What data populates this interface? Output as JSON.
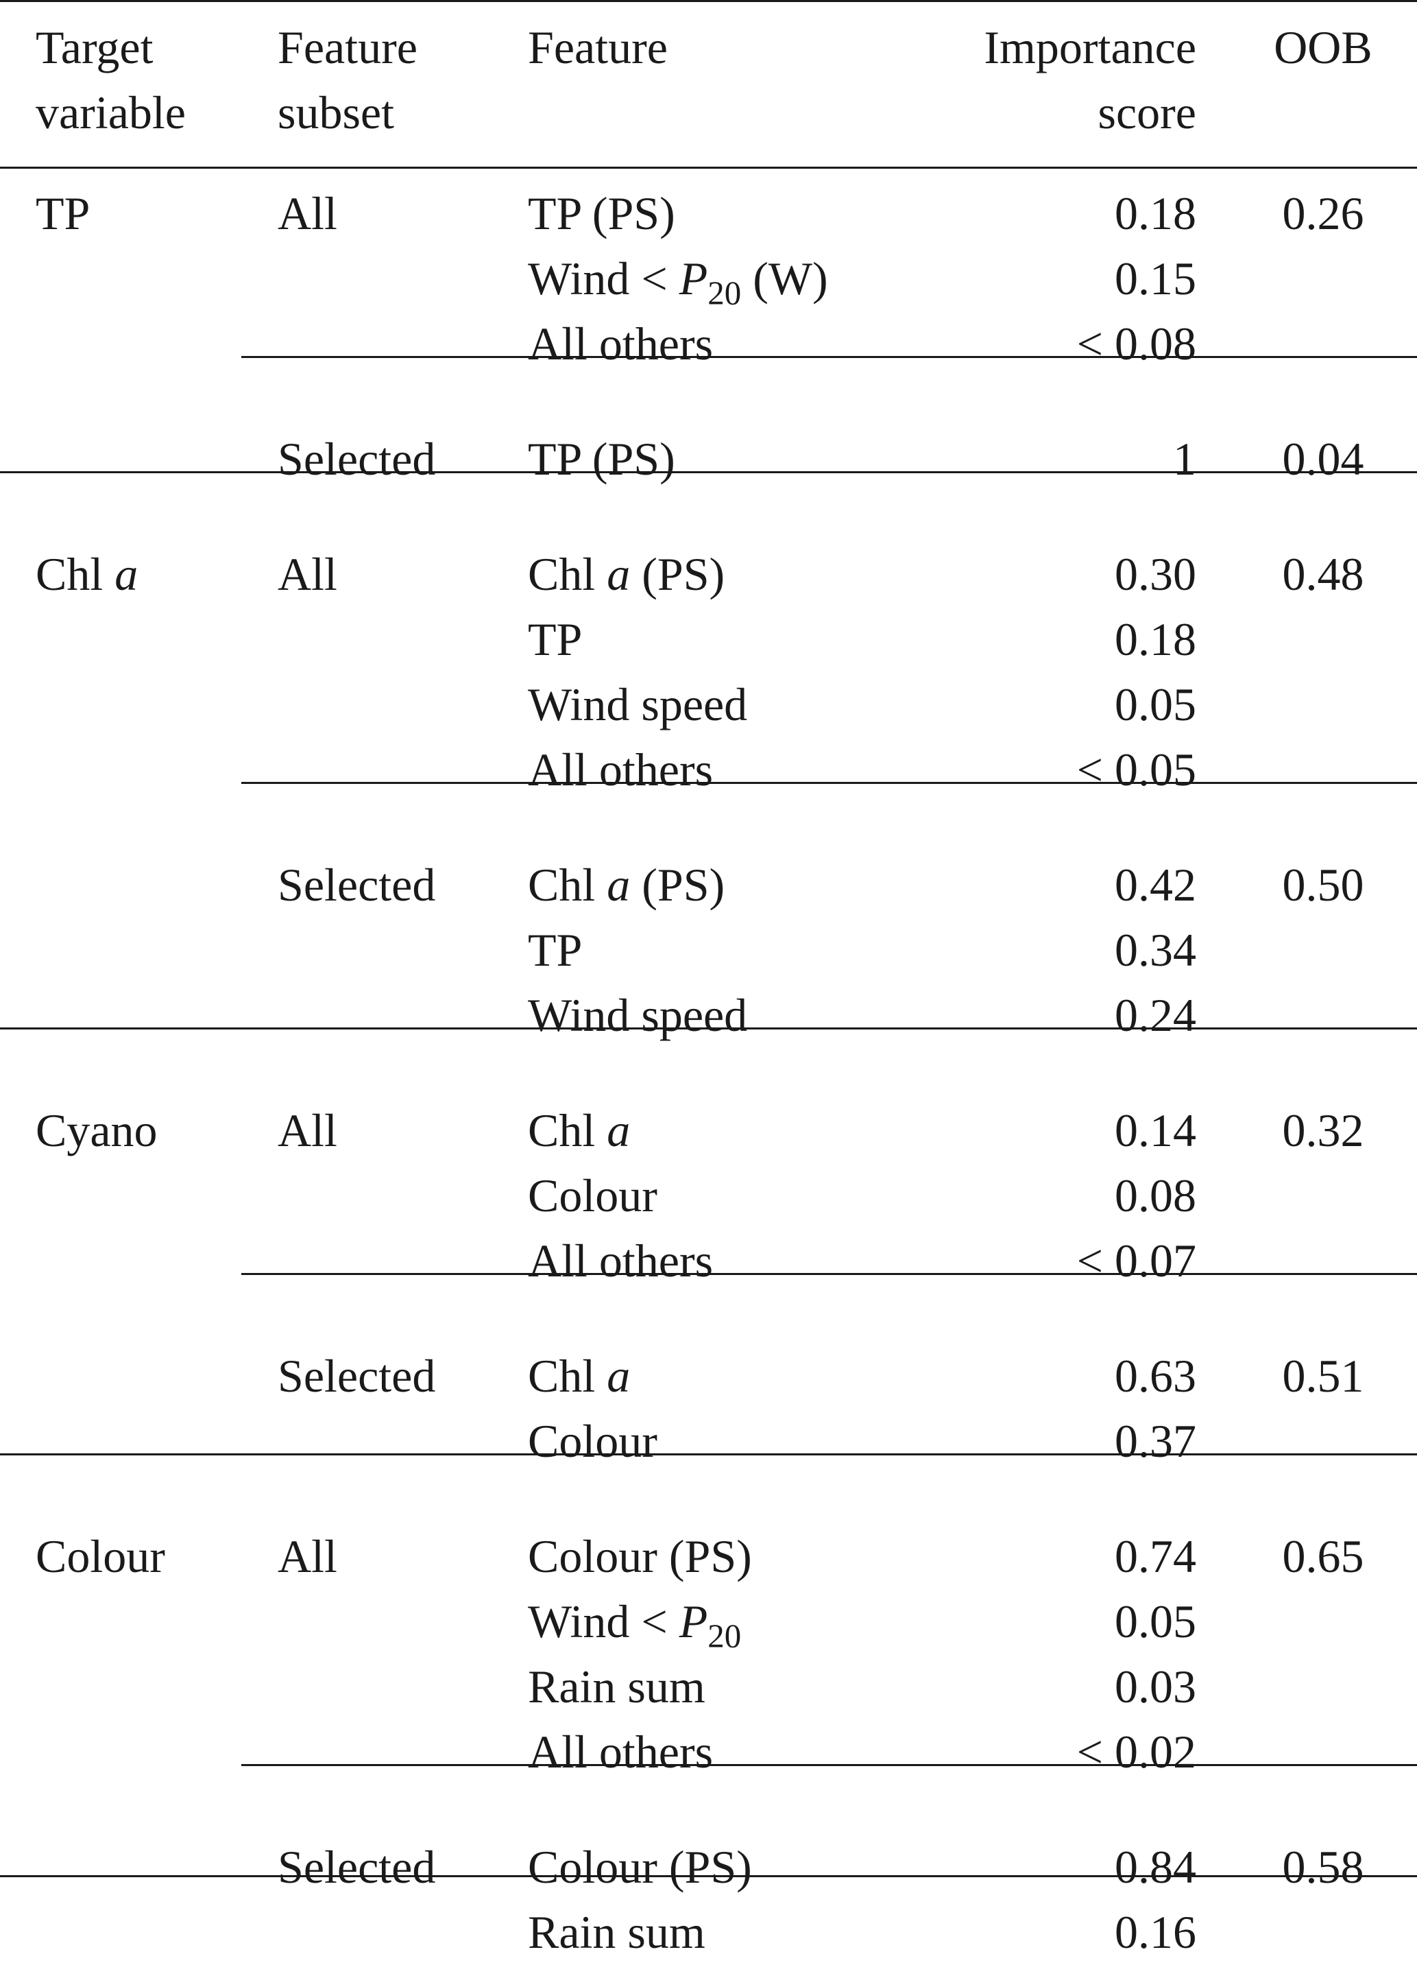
{
  "headers": {
    "target": [
      "Target",
      "variable"
    ],
    "subset": [
      "Feature",
      "subset"
    ],
    "feature": "Feature",
    "importance": [
      "Importance",
      "score"
    ],
    "oob": "OOB"
  },
  "groups": [
    {
      "target": [
        {
          "t": "TP"
        }
      ],
      "blocks": [
        {
          "subset": "All",
          "oob": "0.26",
          "rows": [
            {
              "feature": [
                {
                  "t": "TP (PS)"
                }
              ],
              "score": "0.18"
            },
            {
              "feature": [
                {
                  "t": "Wind < "
                },
                {
                  "t": "P",
                  "i": true
                },
                {
                  "t": "20",
                  "sub": true
                },
                {
                  "t": " (W)"
                }
              ],
              "score": "0.15"
            },
            {
              "feature": [
                {
                  "t": "All others"
                }
              ],
              "score": "< 0.08"
            }
          ]
        },
        {
          "subset": "Selected",
          "oob": "0.04",
          "rows": [
            {
              "feature": [
                {
                  "t": "TP (PS)"
                }
              ],
              "score": "1"
            }
          ]
        }
      ]
    },
    {
      "target": [
        {
          "t": "Chl "
        },
        {
          "t": "a",
          "i": true
        }
      ],
      "blocks": [
        {
          "subset": "All",
          "oob": "0.48",
          "rows": [
            {
              "feature": [
                {
                  "t": "Chl "
                },
                {
                  "t": "a",
                  "i": true
                },
                {
                  "t": " (PS)"
                }
              ],
              "score": "0.30"
            },
            {
              "feature": [
                {
                  "t": "TP"
                }
              ],
              "score": "0.18"
            },
            {
              "feature": [
                {
                  "t": "Wind speed"
                }
              ],
              "score": "0.05"
            },
            {
              "feature": [
                {
                  "t": "All others"
                }
              ],
              "score": "< 0.05"
            }
          ]
        },
        {
          "subset": "Selected",
          "oob": "0.50",
          "rows": [
            {
              "feature": [
                {
                  "t": "Chl "
                },
                {
                  "t": "a",
                  "i": true
                },
                {
                  "t": " (PS)"
                }
              ],
              "score": "0.42"
            },
            {
              "feature": [
                {
                  "t": "TP"
                }
              ],
              "score": "0.34"
            },
            {
              "feature": [
                {
                  "t": "Wind speed"
                }
              ],
              "score": "0.24"
            }
          ]
        }
      ]
    },
    {
      "target": [
        {
          "t": "Cyano"
        }
      ],
      "blocks": [
        {
          "subset": "All",
          "oob": "0.32",
          "rows": [
            {
              "feature": [
                {
                  "t": "Chl "
                },
                {
                  "t": "a",
                  "i": true
                }
              ],
              "score": "0.14"
            },
            {
              "feature": [
                {
                  "t": "Colour"
                }
              ],
              "score": "0.08"
            },
            {
              "feature": [
                {
                  "t": "All others"
                }
              ],
              "score": "< 0.07"
            }
          ]
        },
        {
          "subset": "Selected",
          "oob": "0.51",
          "rows": [
            {
              "feature": [
                {
                  "t": "Chl "
                },
                {
                  "t": "a",
                  "i": true
                }
              ],
              "score": "0.63"
            },
            {
              "feature": [
                {
                  "t": "Colour"
                }
              ],
              "score": "0.37"
            }
          ]
        }
      ]
    },
    {
      "target": [
        {
          "t": "Colour"
        }
      ],
      "blocks": [
        {
          "subset": "All",
          "oob": "0.65",
          "rows": [
            {
              "feature": [
                {
                  "t": "Colour (PS)"
                }
              ],
              "score": "0.74"
            },
            {
              "feature": [
                {
                  "t": "Wind < "
                },
                {
                  "t": "P",
                  "i": true
                },
                {
                  "t": "20",
                  "sub": true
                }
              ],
              "score": "0.05"
            },
            {
              "feature": [
                {
                  "t": "Rain sum"
                }
              ],
              "score": "0.03"
            },
            {
              "feature": [
                {
                  "t": "All others"
                }
              ],
              "score": "< 0.02"
            }
          ]
        },
        {
          "subset": "Selected",
          "oob": "0.58",
          "rows": [
            {
              "feature": [
                {
                  "t": "Colour (PS)"
                }
              ],
              "score": "0.84"
            },
            {
              "feature": [
                {
                  "t": "Rain sum"
                }
              ],
              "score": "0.16"
            }
          ]
        }
      ]
    }
  ]
}
